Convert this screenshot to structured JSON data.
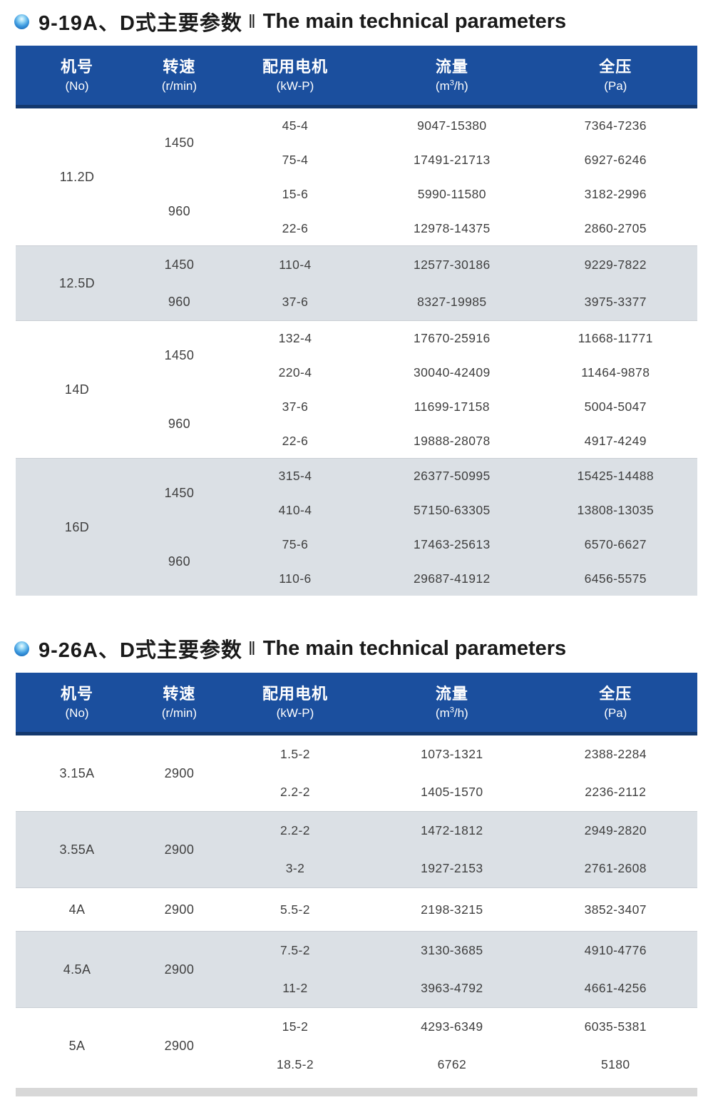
{
  "colors": {
    "header_blue": "#1b4f9e",
    "header_border": "#13386e",
    "shaded_row": "#dbe0e5",
    "strip_gray": "#d8d8d8",
    "bullet_blue": "#0a55a8",
    "text_data": "#3f3f3f"
  },
  "tables": [
    {
      "title_cn": "9-19A、D式主要参数",
      "title_sep": "‖",
      "title_en": "The main technical parameters",
      "header": {
        "no_cn": "机号",
        "no_en": "(No)",
        "speed_cn": "转速",
        "speed_en": "(r/min)",
        "motor_cn": "配用电机",
        "motor_en": "(kW-P)",
        "flow_cn": "流量",
        "flow_pre": "(m",
        "flow_sup": "3",
        "flow_post": "/h)",
        "pressure_cn": "全压",
        "pressure_en": "(Pa)"
      },
      "groups": [
        {
          "no": "11.2D",
          "shaded": false,
          "speeds": [
            {
              "speed": "1450",
              "rows": [
                {
                  "motor": "45-4",
                  "flow": "9047-15380",
                  "pressure": "7364-7236"
                },
                {
                  "motor": "75-4",
                  "flow": "17491-21713",
                  "pressure": "6927-6246"
                }
              ]
            },
            {
              "speed": "960",
              "rows": [
                {
                  "motor": "15-6",
                  "flow": "5990-11580",
                  "pressure": "3182-2996"
                },
                {
                  "motor": "22-6",
                  "flow": "12978-14375",
                  "pressure": "2860-2705"
                }
              ]
            }
          ]
        },
        {
          "no": "12.5D",
          "shaded": true,
          "speeds": [
            {
              "speed": "1450",
              "rows": [
                {
                  "motor": "110-4",
                  "flow": "12577-30186",
                  "pressure": "9229-7822"
                }
              ]
            },
            {
              "speed": "960",
              "rows": [
                {
                  "motor": "37-6",
                  "flow": "8327-19985",
                  "pressure": "3975-3377"
                }
              ]
            }
          ]
        },
        {
          "no": "14D",
          "shaded": false,
          "speeds": [
            {
              "speed": "1450",
              "rows": [
                {
                  "motor": "132-4",
                  "flow": "17670-25916",
                  "pressure": "11668-11771"
                },
                {
                  "motor": "220-4",
                  "flow": "30040-42409",
                  "pressure": "11464-9878"
                }
              ]
            },
            {
              "speed": "960",
              "rows": [
                {
                  "motor": "37-6",
                  "flow": "11699-17158",
                  "pressure": "5004-5047"
                },
                {
                  "motor": "22-6",
                  "flow": "19888-28078",
                  "pressure": "4917-4249"
                }
              ]
            }
          ]
        },
        {
          "no": "16D",
          "shaded": true,
          "speeds": [
            {
              "speed": "1450",
              "rows": [
                {
                  "motor": "315-4",
                  "flow": "26377-50995",
                  "pressure": "15425-14488"
                },
                {
                  "motor": "410-4",
                  "flow": "57150-63305",
                  "pressure": "13808-13035"
                }
              ]
            },
            {
              "speed": "960",
              "rows": [
                {
                  "motor": "75-6",
                  "flow": "17463-25613",
                  "pressure": "6570-6627"
                },
                {
                  "motor": "110-6",
                  "flow": "29687-41912",
                  "pressure": "6456-5575"
                }
              ]
            }
          ]
        }
      ]
    },
    {
      "title_cn": "9-26A、D式主要参数",
      "title_sep": "‖",
      "title_en": "The main technical parameters",
      "header": {
        "no_cn": "机号",
        "no_en": "(No)",
        "speed_cn": "转速",
        "speed_en": "(r/min)",
        "motor_cn": "配用电机",
        "motor_en": "(kW-P)",
        "flow_cn": "流量",
        "flow_pre": "(m",
        "flow_sup": "3",
        "flow_post": "/h)",
        "pressure_cn": "全压",
        "pressure_en": "(Pa)"
      },
      "groups": [
        {
          "no": "3.15A",
          "shaded": false,
          "speeds": [
            {
              "speed": "2900",
              "rows": [
                {
                  "motor": "1.5-2",
                  "flow": "1073-1321",
                  "pressure": "2388-2284"
                },
                {
                  "motor": "2.2-2",
                  "flow": "1405-1570",
                  "pressure": "2236-2112"
                }
              ]
            }
          ]
        },
        {
          "no": "3.55A",
          "shaded": true,
          "speeds": [
            {
              "speed": "2900",
              "rows": [
                {
                  "motor": "2.2-2",
                  "flow": "1472-1812",
                  "pressure": "2949-2820"
                },
                {
                  "motor": "3-2",
                  "flow": "1927-2153",
                  "pressure": "2761-2608"
                }
              ]
            }
          ]
        },
        {
          "no": "4A",
          "shaded": false,
          "speeds": [
            {
              "speed": "2900",
              "rows": [
                {
                  "motor": "5.5-2",
                  "flow": "2198-3215",
                  "pressure": "3852-3407"
                }
              ]
            }
          ]
        },
        {
          "no": "4.5A",
          "shaded": true,
          "speeds": [
            {
              "speed": "2900",
              "rows": [
                {
                  "motor": "7.5-2",
                  "flow": "3130-3685",
                  "pressure": "4910-4776"
                },
                {
                  "motor": "11-2",
                  "flow": "3963-4792",
                  "pressure": "4661-4256"
                }
              ]
            }
          ]
        },
        {
          "no": "5A",
          "shaded": false,
          "speeds": [
            {
              "speed": "2900",
              "rows": [
                {
                  "motor": "15-2",
                  "flow": "4293-6349",
                  "pressure": "6035-5381"
                },
                {
                  "motor": "18.5-2",
                  "flow": "6762",
                  "pressure": "5180"
                }
              ]
            }
          ]
        }
      ]
    }
  ]
}
